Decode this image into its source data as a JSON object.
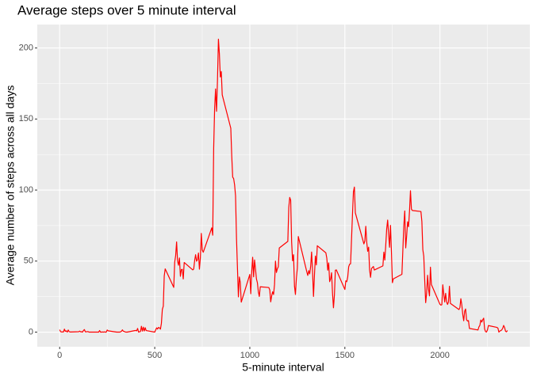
{
  "chart_data": {
    "type": "line",
    "title": "Average steps over 5 minute interval",
    "x_label": "5-minute interval",
    "y_label": "Average number of steps across all days",
    "color": "#ff0000",
    "x": [
      0,
      5,
      10,
      15,
      20,
      25,
      30,
      35,
      40,
      45,
      50,
      55,
      100,
      105,
      110,
      115,
      120,
      125,
      130,
      135,
      140,
      145,
      150,
      155,
      200,
      205,
      210,
      215,
      220,
      225,
      230,
      235,
      240,
      245,
      250,
      255,
      300,
      305,
      310,
      315,
      320,
      325,
      330,
      335,
      340,
      345,
      350,
      355,
      400,
      405,
      410,
      415,
      420,
      425,
      430,
      435,
      440,
      445,
      450,
      455,
      500,
      505,
      510,
      515,
      520,
      525,
      530,
      535,
      540,
      545,
      550,
      555,
      600,
      605,
      610,
      615,
      620,
      625,
      630,
      635,
      640,
      645,
      650,
      655,
      700,
      705,
      710,
      715,
      720,
      725,
      730,
      735,
      740,
      745,
      750,
      755,
      800,
      805,
      810,
      815,
      820,
      825,
      830,
      835,
      840,
      845,
      850,
      855,
      900,
      905,
      910,
      915,
      920,
      925,
      930,
      935,
      940,
      945,
      950,
      955,
      1000,
      1005,
      1010,
      1015,
      1020,
      1025,
      1030,
      1035,
      1040,
      1045,
      1050,
      1055,
      1100,
      1105,
      1110,
      1115,
      1120,
      1125,
      1130,
      1135,
      1140,
      1145,
      1150,
      1155,
      1200,
      1205,
      1210,
      1215,
      1220,
      1225,
      1230,
      1235,
      1240,
      1245,
      1250,
      1255,
      1300,
      1305,
      1310,
      1315,
      1320,
      1325,
      1330,
      1335,
      1340,
      1345,
      1350,
      1355,
      1400,
      1405,
      1410,
      1415,
      1420,
      1425,
      1430,
      1435,
      1440,
      1445,
      1450,
      1455,
      1500,
      1505,
      1510,
      1515,
      1520,
      1525,
      1530,
      1535,
      1540,
      1545,
      1550,
      1555,
      1600,
      1605,
      1610,
      1615,
      1620,
      1625,
      1630,
      1635,
      1640,
      1645,
      1650,
      1655,
      1700,
      1705,
      1710,
      1715,
      1720,
      1725,
      1730,
      1735,
      1740,
      1745,
      1750,
      1755,
      1800,
      1805,
      1810,
      1815,
      1820,
      1825,
      1830,
      1835,
      1840,
      1845,
      1850,
      1855,
      1900,
      1905,
      1910,
      1915,
      1920,
      1925,
      1930,
      1935,
      1940,
      1945,
      1950,
      1955,
      2000,
      2005,
      2010,
      2015,
      2020,
      2025,
      2030,
      2035,
      2040,
      2045,
      2050,
      2055,
      2100,
      2105,
      2110,
      2115,
      2120,
      2125,
      2130,
      2135,
      2140,
      2145,
      2150,
      2155,
      2200,
      2205,
      2210,
      2215,
      2220,
      2225,
      2230,
      2235,
      2240,
      2245,
      2250,
      2255,
      2300,
      2305,
      2310,
      2315,
      2320,
      2325,
      2330,
      2335,
      2340,
      2345,
      2350,
      2355
    ],
    "values": [
      1.7,
      0.3,
      0.1,
      0.2,
      0.1,
      2.1,
      0.5,
      0.9,
      0,
      1.5,
      0.3,
      0.1,
      0.3,
      0.7,
      0.2,
      0.3,
      0,
      1.1,
      1.8,
      0.2,
      0.2,
      0.4,
      0.3,
      0,
      0,
      0,
      1.1,
      0,
      0,
      0.1,
      0,
      0.2,
      0,
      0,
      1.5,
      0.9,
      0,
      0,
      0,
      0,
      0.2,
      0.6,
      1.6,
      0.6,
      0.5,
      0.1,
      0,
      0,
      1.2,
      0.9,
      2.6,
      0,
      0.3,
      0.4,
      4.1,
      0.7,
      3.5,
      0.8,
      3.1,
      1.1,
      0,
      1.6,
      3,
      2.2,
      3.3,
      3,
      2.1,
      6.1,
      16,
      18.3,
      39.5,
      44.5,
      31.5,
      49.3,
      53.8,
      63.5,
      50,
      47.1,
      52.2,
      39.3,
      44,
      44.2,
      37.4,
      49,
      43.8,
      44.4,
      50.5,
      54.5,
      49.9,
      51,
      55.7,
      44.3,
      52.3,
      69.5,
      57.8,
      56.2,
      73.4,
      68.2,
      129.4,
      157.5,
      171.2,
      155.4,
      177.3,
      206.2,
      195.9,
      179.6,
      183.4,
      167,
      143.5,
      124,
      109.1,
      108.1,
      103.7,
      96,
      66.2,
      45.2,
      24.8,
      38.8,
      35,
      21.1,
      40.6,
      27,
      42.4,
      52.7,
      38.9,
      50.8,
      44.3,
      37.4,
      34.7,
      28.3,
      25.1,
      31.9,
      31.4,
      29.7,
      21.3,
      25.5,
      28.4,
      26.5,
      33.4,
      50,
      42,
      44.6,
      46,
      59.2,
      63.9,
      87.7,
      94.8,
      92.8,
      63.4,
      50.2,
      54.5,
      32.4,
      26.5,
      37.7,
      45.1,
      67.3,
      42.3,
      39.9,
      43.3,
      41,
      46.2,
      56.4,
      42.8,
      25.1,
      40,
      53.5,
      47.3,
      60.8,
      55.8,
      52,
      43.6,
      48.7,
      35.5,
      37.5,
      41.8,
      27.5,
      17.1,
      26.1,
      43.6,
      43.8,
      30,
      36.1,
      35.5,
      38.8,
      46,
      47.8,
      48.1,
      65.3,
      82.9,
      98.7,
      102.1,
      84,
      62.1,
      64.1,
      74.5,
      63.2,
      56.9,
      59.8,
      43.9,
      38.6,
      44.7,
      45.5,
      46.2,
      43.7,
      46.6,
      56.3,
      50.7,
      61.2,
      72.7,
      78.9,
      68.9,
      59.7,
      75.1,
      56.5,
      34.8,
      37.5,
      40.7,
      58,
      74.7,
      85.3,
      59.3,
      67.8,
      77.7,
      74.2,
      85.3,
      99.5,
      86.6,
      85.6,
      84.9,
      77.8,
      58,
      53.4,
      36.3,
      20.7,
      27.4,
      40,
      30.2,
      25.5,
      45.7,
      33.5,
      19.6,
      19,
      19.3,
      33.3,
      26.8,
      21.2,
      27.3,
      21.3,
      19.5,
      21.3,
      32.3,
      20.2,
      15.9,
      17.2,
      23.5,
      19.2,
      12.5,
      8,
      14.7,
      16.3,
      8.7,
      7.8,
      8.1,
      2.6,
      1.5,
      3.7,
      4.8,
      8.5,
      7.1,
      8.7,
      9.8,
      2.2,
      0.3,
      0.1,
      1.6,
      4.6,
      3.3,
      2.8,
      0,
      0.8,
      1,
      1.6,
      2.6,
      4.7,
      3.3,
      0.6,
      0.2,
      1.1
    ],
    "xlim": [
      -117.75,
      2472.75
    ],
    "ylim": [
      -10.3,
      216.5
    ],
    "xticks": [
      0,
      500,
      1000,
      1500,
      2000
    ],
    "yticks": [
      0,
      50,
      100,
      150,
      200
    ],
    "grid": true
  }
}
